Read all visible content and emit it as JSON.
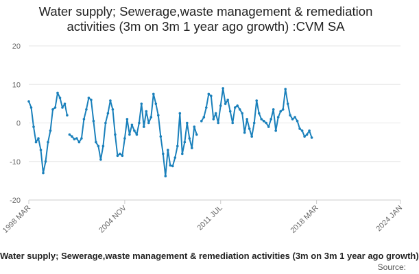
{
  "chart_data": {
    "type": "line",
    "title_lines": [
      "Water supply; Sewerage,waste management & remediation",
      "activities (3m on 3m 1 year ago growth) :CVM SA"
    ],
    "footer_series_label": "Water supply; Sewerage,waste management & remediation activities (3m on 3m 1 year ago growth)",
    "source_label": "Source:",
    "ylim": [
      -20,
      20
    ],
    "y_ticks": [
      "20",
      "10",
      "0",
      "-10",
      "-20"
    ],
    "y_tick_values": [
      20,
      10,
      0,
      -10,
      -20
    ],
    "x_tick_labels": [
      "1998 MAR",
      "2004 NOV",
      "2011 JUL",
      "2018 MAR",
      "2024 JAN"
    ],
    "x_tick_dates": [
      "1998-03",
      "2004-11",
      "2011-07",
      "2018-03",
      "2024-01"
    ],
    "grid": true,
    "legend": "none",
    "color": "#1a80bb",
    "series": [
      {
        "points": [
          [
            "1998-03",
            5.6
          ],
          [
            "1998-05",
            4.0
          ],
          [
            "1998-07",
            -1.0
          ],
          [
            "1998-09",
            -5.0
          ],
          [
            "1998-11",
            -4.0
          ],
          [
            "1999-01",
            -7.0
          ],
          [
            "1999-03",
            -13.0
          ],
          [
            "1999-05",
            -10.0
          ],
          [
            "1999-07",
            -5.0
          ],
          [
            "1999-09",
            -2.0
          ],
          [
            "1999-11",
            3.5
          ],
          [
            "2000-01",
            4.0
          ],
          [
            "2000-03",
            7.8
          ],
          [
            "2000-05",
            6.5
          ],
          [
            "2000-07",
            4.0
          ],
          [
            "2000-09",
            5.0
          ],
          [
            "2000-11",
            2.0
          ],
          null,
          [
            "2001-01",
            -3.0
          ],
          [
            "2001-03",
            -3.5
          ],
          [
            "2001-05",
            -4.2
          ],
          [
            "2001-07",
            -4.0
          ],
          [
            "2001-09",
            -5.0
          ],
          [
            "2001-11",
            -4.0
          ],
          [
            "2002-01",
            1.0
          ],
          [
            "2002-03",
            3.5
          ],
          [
            "2002-05",
            6.5
          ],
          [
            "2002-07",
            6.0
          ],
          [
            "2002-09",
            0.5
          ],
          [
            "2002-11",
            -5.0
          ],
          [
            "2003-01",
            -6.0
          ],
          [
            "2003-03",
            -9.5
          ],
          [
            "2003-05",
            -6.0
          ],
          [
            "2003-07",
            0.0
          ],
          [
            "2003-09",
            2.5
          ],
          [
            "2003-11",
            5.8
          ],
          [
            "2004-01",
            3.5
          ],
          [
            "2004-03",
            -3.0
          ],
          [
            "2004-05",
            -8.5
          ],
          [
            "2004-07",
            -8.0
          ],
          [
            "2004-09",
            -8.5
          ],
          [
            "2004-11",
            -4.0
          ],
          [
            "2005-01",
            1.0
          ],
          [
            "2005-03",
            -3.0
          ],
          [
            "2005-05",
            -0.5
          ],
          [
            "2005-07",
            -2.0
          ],
          [
            "2005-09",
            -3.0
          ],
          [
            "2005-11",
            0.0
          ],
          [
            "2006-01",
            5.0
          ],
          [
            "2006-03",
            -1.0
          ],
          [
            "2006-05",
            3.0
          ],
          [
            "2006-07",
            0.0
          ],
          [
            "2006-09",
            1.5
          ],
          [
            "2006-11",
            7.5
          ],
          [
            "2007-01",
            5.0
          ],
          [
            "2007-03",
            2.0
          ],
          [
            "2007-05",
            -3.5
          ],
          [
            "2007-07",
            -8.0
          ],
          [
            "2007-09",
            -13.8
          ],
          [
            "2007-11",
            -7.0
          ],
          [
            "2008-01",
            -11.0
          ],
          [
            "2008-03",
            -11.2
          ],
          [
            "2008-05",
            -9.0
          ],
          [
            "2008-07",
            -6.0
          ],
          [
            "2008-09",
            2.5
          ],
          [
            "2008-11",
            -8.0
          ],
          [
            "2009-01",
            -5.0
          ],
          [
            "2009-03",
            0.0
          ],
          [
            "2009-05",
            -4.0
          ],
          [
            "2009-07",
            -6.5
          ],
          [
            "2009-09",
            -1.0
          ],
          [
            "2009-11",
            -3.0
          ],
          null,
          [
            "2010-03",
            0.5
          ],
          [
            "2010-05",
            1.5
          ],
          [
            "2010-07",
            4.0
          ],
          [
            "2010-09",
            7.5
          ],
          [
            "2010-11",
            7.0
          ],
          [
            "2011-01",
            1.0
          ],
          [
            "2011-03",
            2.5
          ],
          [
            "2011-05",
            0.0
          ],
          [
            "2011-07",
            4.5
          ],
          [
            "2011-09",
            9.0
          ],
          [
            "2011-11",
            5.0
          ],
          [
            "2012-01",
            6.0
          ],
          [
            "2012-03",
            3.0
          ],
          [
            "2012-05",
            0.0
          ],
          [
            "2012-07",
            4.0
          ],
          [
            "2012-09",
            4.5
          ],
          [
            "2012-11",
            3.5
          ],
          [
            "2013-01",
            2.5
          ],
          [
            "2013-03",
            -2.5
          ],
          [
            "2013-05",
            1.0
          ],
          [
            "2013-07",
            -1.5
          ],
          [
            "2013-09",
            -3.5
          ],
          [
            "2013-11",
            0.0
          ],
          [
            "2014-01",
            5.8
          ],
          [
            "2014-03",
            2.5
          ],
          [
            "2014-05",
            1.0
          ],
          [
            "2014-07",
            0.5
          ],
          [
            "2014-09",
            0.0
          ],
          [
            "2014-11",
            -1.0
          ],
          [
            "2015-01",
            1.0
          ],
          [
            "2015-03",
            3.5
          ],
          [
            "2015-05",
            -2.0
          ],
          [
            "2015-07",
            1.5
          ],
          [
            "2015-09",
            3.0
          ],
          [
            "2015-11",
            3.5
          ],
          [
            "2016-01",
            8.8
          ],
          [
            "2016-03",
            5.0
          ],
          [
            "2016-05",
            2.0
          ],
          [
            "2016-07",
            1.0
          ],
          [
            "2016-09",
            1.5
          ],
          [
            "2016-11",
            0.5
          ],
          [
            "2017-01",
            -1.5
          ],
          [
            "2017-03",
            -2.0
          ],
          [
            "2017-05",
            -3.5
          ],
          [
            "2017-07",
            -3.0
          ],
          [
            "2017-09",
            -2.0
          ],
          [
            "2017-11",
            -3.8
          ]
        ]
      }
    ]
  }
}
